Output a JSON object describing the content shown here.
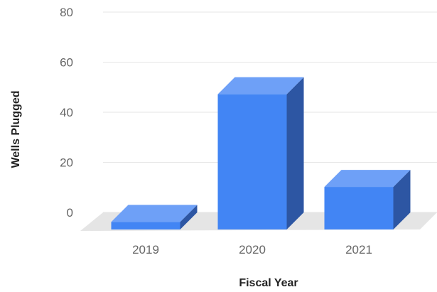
{
  "chart_data": {
    "type": "bar",
    "style": "3d",
    "categories": [
      "2019",
      "2020",
      "2021"
    ],
    "series": [
      {
        "values": [
          3,
          54,
          17
        ]
      }
    ],
    "xlabel": "Fiscal Year",
    "ylabel": "Wells Plugged",
    "ylim": [
      0,
      80
    ],
    "yticks": [
      "0",
      "20",
      "40",
      "60",
      "80"
    ],
    "grid": true,
    "legend": "none",
    "colors": {
      "bar_front": "#4285f4",
      "bar_top": "#6ea0f7",
      "bar_side": "#2d56a3",
      "grid": "#e6e6e6",
      "floor": "#e5e5e5"
    }
  }
}
